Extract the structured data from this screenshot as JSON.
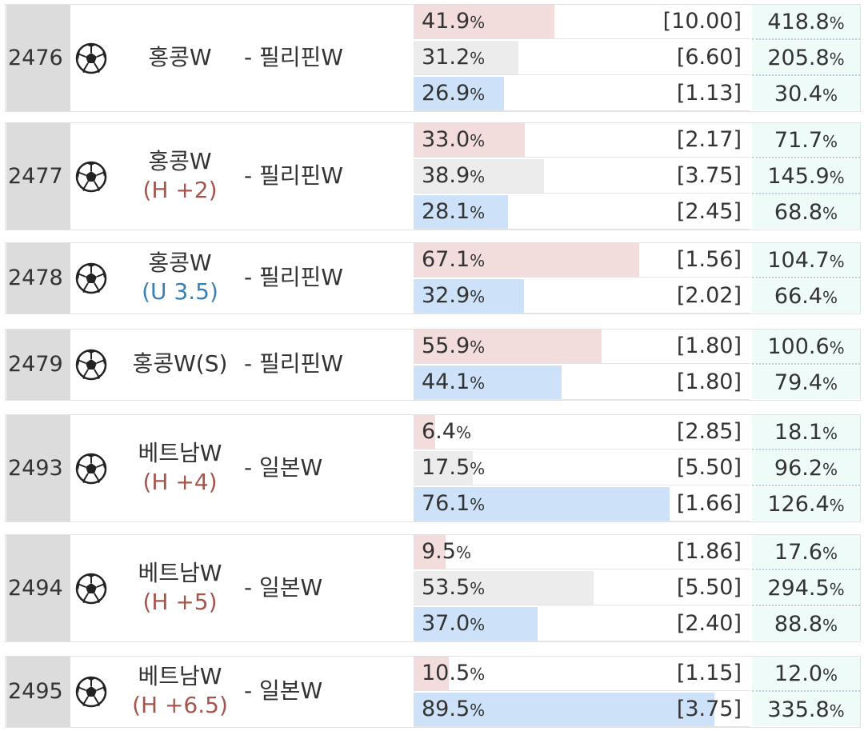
{
  "unit": "%",
  "matches": [
    {
      "id": "2476",
      "home": "홍콩W",
      "away": "- 필리핀W",
      "rows": [
        {
          "pct": 41.9,
          "odds": "[10.00]",
          "ret": "418.8",
          "color": "#f2dcdc"
        },
        {
          "pct": 31.2,
          "odds": "[6.60]",
          "ret": "205.8",
          "color": "#ececec"
        },
        {
          "pct": 26.9,
          "odds": "[1.13]",
          "ret": "30.4",
          "color": "#cde1f8"
        }
      ]
    },
    {
      "id": "2477",
      "home": "홍콩W",
      "handicap": "(H +2)",
      "handicap_color": "#a4554c",
      "away": "- 필리핀W",
      "rows": [
        {
          "pct": {
            "value": 33.0,
            "label": "33.0"
          },
          "odds": "[2.17]",
          "ret": "71.7",
          "color": "#f2dcdc"
        },
        {
          "pct": 38.9,
          "odds": "[3.75]",
          "ret": "145.9",
          "color": "#ececec"
        },
        {
          "pct": 28.1,
          "odds": "[2.45]",
          "ret": "68.8",
          "color": "#cde1f8"
        }
      ]
    },
    {
      "id": "2478",
      "home": "홍콩W",
      "handicap": "(U 3.5)",
      "handicap_color": "#3b80b4",
      "away": "- 필리핀W",
      "rows": [
        {
          "pct": 67.1,
          "odds": "[1.56]",
          "ret": "104.7",
          "color": "#f2dcdc"
        },
        {
          "pct": 32.9,
          "odds": "[2.02]",
          "ret": "66.4",
          "color": "#cde1f8"
        }
      ]
    },
    {
      "id": "2479",
      "home": "홍콩W(S)",
      "away": "- 필리핀W",
      "rows": [
        {
          "pct": 55.9,
          "odds": "[1.80]",
          "ret": "100.6",
          "color": "#f2dcdc"
        },
        {
          "pct": 44.1,
          "odds": "[1.80]",
          "ret": "79.4",
          "color": "#cde1f8"
        }
      ]
    },
    {
      "id": "2493",
      "home": "베트남W",
      "handicap": "(H +4)",
      "handicap_color": "#a4554c",
      "away": "- 일본W",
      "rows": [
        {
          "pct": 6.4,
          "odds": "[2.85]",
          "ret": "18.1",
          "color": "#f2dcdc"
        },
        {
          "pct": 17.5,
          "odds": "[5.50]",
          "ret": "96.2",
          "color": "#ececec"
        },
        {
          "pct": 76.1,
          "odds": "[1.66]",
          "ret": "126.4",
          "color": "#cde1f8"
        }
      ]
    },
    {
      "id": "2494",
      "home": "베트남W",
      "handicap": "(H +5)",
      "handicap_color": "#a4554c",
      "away": "- 일본W",
      "rows": [
        {
          "pct": 9.5,
          "odds": "[1.86]",
          "ret": "17.6",
          "color": "#f2dcdc"
        },
        {
          "pct": 53.5,
          "odds": "[5.50]",
          "ret": "294.5",
          "color": "#ececec"
        },
        {
          "pct": {
            "value": 37.0,
            "label": "37.0"
          },
          "odds": "[2.40]",
          "ret": "88.8",
          "color": "#cde1f8"
        }
      ]
    },
    {
      "id": "2495",
      "home": "베트남W",
      "handicap": "(H +6.5)",
      "handicap_color": "#a4554c",
      "away": "- 일본W",
      "rows": [
        {
          "pct": 10.5,
          "odds": "[1.15]",
          "ret": "12.0",
          "color": "#f2dcdc"
        },
        {
          "pct": 89.5,
          "odds": "[3.75]",
          "ret": "335.8",
          "color": "#cde1f8"
        }
      ]
    }
  ]
}
